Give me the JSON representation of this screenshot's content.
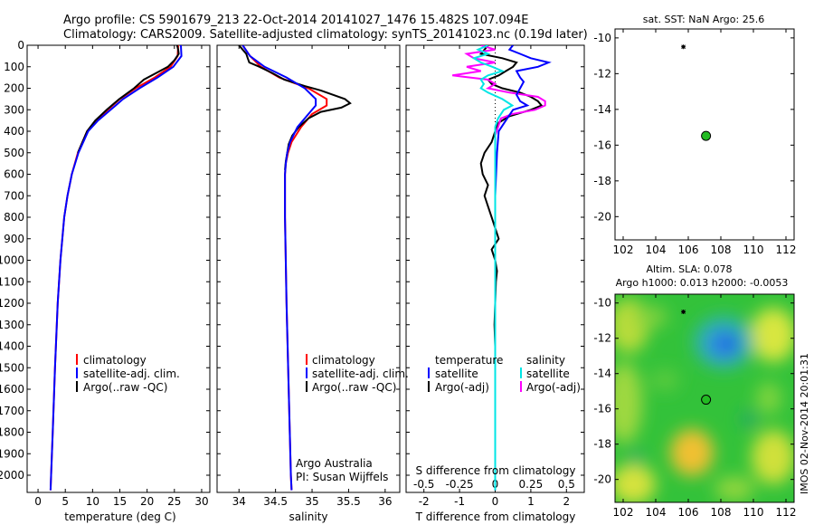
{
  "titles": {
    "line1": "Argo profile: CS 5901679_213 22-Oct-2014 20141027_1476 15.482S 107.094E",
    "line2": "Climatology: CARS2009. Satellite-adjusted climatology: synTS_20141023.nc (0.19d later)"
  },
  "colors": {
    "climatology": "#ff0000",
    "satellite": "#0000ff",
    "argo": "#000000",
    "salinity_sat": "#00e5e5",
    "salinity_argo": "#ff00ff",
    "marker": "#22bb22"
  },
  "depth_axis": {
    "min": 0,
    "max": 2080,
    "ticks": [
      "0",
      "100",
      "200",
      "300",
      "400",
      "500",
      "600",
      "700",
      "800",
      "900",
      "1000",
      "1100",
      "1200",
      "1300",
      "1400",
      "1500",
      "1600",
      "1700",
      "1800",
      "1900",
      "2000"
    ]
  },
  "chart_data": [
    {
      "id": "temperature",
      "type": "line",
      "xlabel": "temperature (deg C)",
      "xlim": [
        -2,
        31.5
      ],
      "xticks": [
        "0",
        "5",
        "10",
        "15",
        "20",
        "25",
        "30"
      ],
      "legend": [
        "climatology",
        "satellite-adj. clim.",
        "Argo(..raw -QC)"
      ],
      "series": [
        {
          "name": "climatology",
          "depth": [
            0,
            50,
            100,
            150,
            200,
            250,
            300,
            350,
            400,
            500,
            600,
            700,
            800,
            1000,
            1200,
            1500,
            1800,
            2000,
            2070
          ],
          "values": [
            25.7,
            25.6,
            24.3,
            21.4,
            17.9,
            15.0,
            12.8,
            10.6,
            9.0,
            7.3,
            6.2,
            5.4,
            4.8,
            4.1,
            3.6,
            3.1,
            2.7,
            2.4,
            2.3
          ]
        },
        {
          "name": "satellite-adj. clim.",
          "depth": [
            0,
            50,
            100,
            150,
            200,
            250,
            300,
            350,
            400,
            500,
            600,
            700,
            800,
            1000,
            1200,
            1500,
            1800,
            2000,
            2070
          ],
          "values": [
            26.2,
            26.3,
            24.8,
            21.9,
            18.6,
            15.6,
            13.3,
            11.0,
            9.2,
            7.4,
            6.2,
            5.4,
            4.8,
            4.1,
            3.6,
            3.1,
            2.7,
            2.4,
            2.3
          ]
        },
        {
          "name": "Argo(..raw -QC)",
          "depth": [
            0,
            20,
            40,
            70,
            100,
            130,
            160,
            200,
            250,
            300,
            350,
            400,
            500
          ],
          "values": [
            25.5,
            25.7,
            25.8,
            25.0,
            23.8,
            21.6,
            19.4,
            17.6,
            14.9,
            12.6,
            10.5,
            9.0,
            7.3
          ]
        }
      ]
    },
    {
      "id": "salinity",
      "type": "line",
      "xlabel": "salinity",
      "xlim": [
        33.7,
        36.2
      ],
      "xticks": [
        "34",
        "34.5",
        "35",
        "35.5",
        "36"
      ],
      "legend": [
        "climatology",
        "satellite-adj. clim.",
        "Argo(..raw -QC)"
      ],
      "series": [
        {
          "name": "climatology",
          "depth": [
            0,
            50,
            100,
            150,
            200,
            250,
            280,
            320,
            380,
            450,
            500,
            550,
            600,
            800,
            1200,
            1600,
            2000,
            2070
          ],
          "values": [
            34.05,
            34.15,
            34.3,
            34.55,
            34.95,
            35.2,
            35.2,
            35.0,
            34.85,
            34.72,
            34.67,
            34.64,
            34.63,
            34.63,
            34.65,
            34.68,
            34.71,
            34.72
          ]
        },
        {
          "name": "satellite-adj. clim.",
          "depth": [
            0,
            50,
            100,
            150,
            200,
            250,
            280,
            320,
            380,
            450,
            500,
            550,
            600,
            800,
            1200,
            1600,
            2000,
            2070
          ],
          "values": [
            34.05,
            34.15,
            34.35,
            34.65,
            34.9,
            35.05,
            35.05,
            34.95,
            34.8,
            34.7,
            34.66,
            34.64,
            34.63,
            34.63,
            34.65,
            34.68,
            34.71,
            34.72
          ]
        },
        {
          "name": "Argo(..raw -QC)",
          "depth": [
            0,
            20,
            40,
            60,
            80,
            100,
            130,
            160,
            190,
            210,
            230,
            250,
            270,
            290,
            310,
            340,
            380,
            420,
            460,
            500,
            540,
            580
          ],
          "values": [
            34.0,
            34.05,
            34.1,
            34.12,
            34.14,
            34.28,
            34.46,
            34.62,
            34.9,
            35.12,
            35.28,
            35.45,
            35.52,
            35.4,
            35.12,
            34.95,
            34.82,
            34.73,
            34.68,
            34.66,
            34.64,
            34.63
          ]
        }
      ],
      "annotation": [
        "Argo Australia",
        "PI: Susan Wijffels"
      ]
    },
    {
      "id": "difference",
      "type": "line",
      "xlabel": "T difference from climatology",
      "xlabel_top": "S difference from climatology",
      "xlim": [
        -2.5,
        2.5
      ],
      "xticks": [
        "-2",
        "-1",
        "0",
        "1",
        "2"
      ],
      "xticks_s": [
        "-0.5",
        "-0.25",
        "0",
        "0.25",
        "0.5"
      ],
      "legend_t_title": "temperature",
      "legend_s_title": "salinity",
      "legend_t": [
        "satellite",
        "Argo(-adj)"
      ],
      "legend_s": [
        "satellite",
        "Argo(-adj)"
      ],
      "series": [
        {
          "name": "T satellite",
          "depth": [
            0,
            20,
            40,
            60,
            80,
            100,
            120,
            150,
            170,
            200,
            230,
            260,
            280,
            300,
            350,
            400,
            500,
            700,
            1000,
            1500,
            2000,
            2070
          ],
          "values": [
            0.5,
            0.4,
            0.7,
            1.0,
            1.5,
            1.2,
            0.6,
            0.7,
            0.8,
            0.7,
            0.6,
            0.7,
            0.9,
            0.5,
            0.3,
            0.1,
            0.05,
            0,
            0,
            0,
            0,
            0
          ]
        },
        {
          "name": "T Argo(-adj)",
          "depth": [
            0,
            20,
            40,
            60,
            80,
            100,
            120,
            140,
            160,
            180,
            200,
            220,
            240,
            260,
            280,
            300,
            330,
            360,
            400,
            450,
            500,
            550,
            600,
            650,
            700,
            750,
            800,
            850,
            900,
            950,
            1000,
            1050,
            1100,
            1200,
            1300,
            1400,
            1500,
            1600,
            1700,
            1800,
            1900,
            2000,
            2050
          ],
          "values": [
            -0.2,
            -0.3,
            -0.4,
            0.2,
            0.6,
            0.5,
            0.3,
            0.1,
            -0.2,
            -0.1,
            0.2,
            0.7,
            1.0,
            1.2,
            1.3,
            1.0,
            0.4,
            0.1,
            0.0,
            -0.1,
            -0.3,
            -0.4,
            -0.35,
            -0.2,
            -0.3,
            -0.2,
            -0.1,
            0.0,
            0.1,
            -0.1,
            0.0,
            0.05,
            0.02,
            0.0,
            -0.02,
            0.0,
            0.0,
            0.0,
            0.0,
            0.0,
            0.0,
            0.0,
            0.0
          ]
        },
        {
          "name": "S satellite",
          "depth": [
            0,
            20,
            40,
            60,
            80,
            100,
            120,
            140,
            160,
            180,
            200,
            220,
            250,
            280,
            300,
            340,
            380,
            420,
            500,
            700,
            1000,
            1500,
            2000,
            2070
          ],
          "values": [
            -0.05,
            -0.12,
            -0.05,
            -0.15,
            -0.1,
            -0.02,
            0.05,
            -0.05,
            -0.1,
            -0.08,
            -0.1,
            -0.05,
            0.05,
            0.12,
            0.06,
            0.02,
            0.0,
            0.0,
            0.0,
            0.0,
            0.0,
            0.0,
            0.0,
            0.0
          ]
        },
        {
          "name": "S Argo(-adj)",
          "depth": [
            0,
            20,
            40,
            60,
            80,
            100,
            120,
            140,
            160,
            180,
            200,
            220,
            240,
            260,
            280,
            300,
            320,
            340,
            380,
            420,
            500
          ],
          "values": [
            -0.1,
            0.0,
            -0.2,
            -0.15,
            0.0,
            -0.2,
            -0.1,
            -0.3,
            -0.05,
            0.0,
            -0.05,
            0.1,
            0.3,
            0.35,
            0.35,
            0.28,
            0.12,
            0.04,
            0.02,
            0.0,
            0.0
          ]
        }
      ]
    },
    {
      "id": "sst_map",
      "type": "scatter",
      "title": "sat. SST: NaN Argo: 25.6",
      "xlim": [
        101.5,
        112.5
      ],
      "ylim": [
        -21.3,
        -9.5
      ],
      "xticks": [
        "102",
        "104",
        "106",
        "108",
        "110",
        "112"
      ],
      "yticks": [
        "-10",
        "-12",
        "-14",
        "-16",
        "-18",
        "-20"
      ],
      "points": [
        {
          "name": "argo-position",
          "x": 107.09,
          "y": -15.48
        },
        {
          "name": "previous-position",
          "x": 105.7,
          "y": -10.5
        }
      ]
    },
    {
      "id": "sla_map",
      "type": "heatmap",
      "title": "Altim. SLA: 0.078",
      "subtitle": "Argo h1000: 0.013 h2000: -0.0053",
      "xlim": [
        101.5,
        112.5
      ],
      "ylim": [
        -21.3,
        -9.5
      ],
      "xticks": [
        "102",
        "104",
        "106",
        "108",
        "110",
        "112"
      ],
      "yticks": [
        "-10",
        "-12",
        "-14",
        "-16",
        "-18",
        "-20"
      ],
      "points": [
        {
          "name": "argo-position",
          "x": 107.09,
          "y": -15.48
        },
        {
          "name": "previous-position",
          "x": 105.7,
          "y": -10.5
        }
      ]
    }
  ],
  "credit": "IMOS 02-Nov-2014 20:01:31"
}
